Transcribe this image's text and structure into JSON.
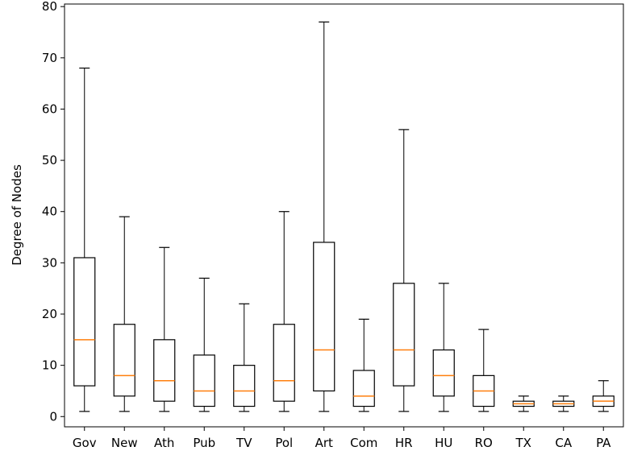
{
  "chart_data": {
    "type": "box",
    "xlabel": "",
    "ylabel": "Degree of Nodes",
    "ylim": [
      -2,
      80.5
    ],
    "yticks": [
      0,
      10,
      20,
      30,
      40,
      50,
      60,
      70,
      80
    ],
    "grid": false,
    "colors": {
      "box": "#000000",
      "median": "#ff7f0e"
    },
    "categories": [
      "Gov",
      "New",
      "Ath",
      "Pub",
      "TV",
      "Pol",
      "Art",
      "Com",
      "HR",
      "HU",
      "RO",
      "TX",
      "CA",
      "PA"
    ],
    "boxes": [
      {
        "label": "Gov",
        "min": 1,
        "q1": 6,
        "median": 15,
        "q3": 31,
        "max": 68
      },
      {
        "label": "New",
        "min": 1,
        "q1": 4,
        "median": 8,
        "q3": 18,
        "max": 39
      },
      {
        "label": "Ath",
        "min": 1,
        "q1": 3,
        "median": 7,
        "q3": 15,
        "max": 33
      },
      {
        "label": "Pub",
        "min": 1,
        "q1": 2,
        "median": 5,
        "q3": 12,
        "max": 27
      },
      {
        "label": "TV",
        "min": 1,
        "q1": 2,
        "median": 5,
        "q3": 10,
        "max": 22
      },
      {
        "label": "Pol",
        "min": 1,
        "q1": 3,
        "median": 7,
        "q3": 18,
        "max": 40
      },
      {
        "label": "Art",
        "min": 1,
        "q1": 5,
        "median": 13,
        "q3": 34,
        "max": 77
      },
      {
        "label": "Com",
        "min": 1,
        "q1": 2,
        "median": 4,
        "q3": 9,
        "max": 19
      },
      {
        "label": "HR",
        "min": 1,
        "q1": 6,
        "median": 13,
        "q3": 26,
        "max": 56
      },
      {
        "label": "HU",
        "min": 1,
        "q1": 4,
        "median": 8,
        "q3": 13,
        "max": 26
      },
      {
        "label": "RO",
        "min": 1,
        "q1": 2,
        "median": 5,
        "q3": 8,
        "max": 17
      },
      {
        "label": "TX",
        "min": 1,
        "q1": 2,
        "median": 2.5,
        "q3": 3,
        "max": 4
      },
      {
        "label": "CA",
        "min": 1,
        "q1": 2,
        "median": 2.5,
        "q3": 3,
        "max": 4
      },
      {
        "label": "PA",
        "min": 1,
        "q1": 2,
        "median": 3,
        "q3": 4,
        "max": 7
      }
    ]
  }
}
